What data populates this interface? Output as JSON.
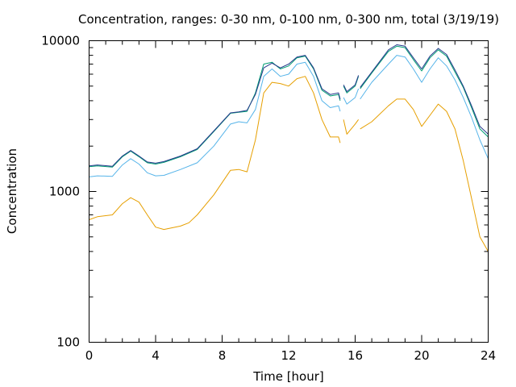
{
  "chart_data": {
    "type": "line",
    "title": "Concentration, ranges: 0-30 nm, 0-100 nm, 0-300 nm, total (3/19/19)",
    "xlabel": "Time [hour]",
    "ylabel": "Concentration",
    "xlim": [
      0,
      24
    ],
    "ylim": [
      100,
      10000
    ],
    "yscale": "log",
    "grid": false,
    "legend": "none",
    "x_ticks": [
      0,
      4,
      8,
      12,
      16,
      20,
      24
    ],
    "x_tick_labels": [
      "0",
      "4",
      "8",
      "12",
      "16",
      "20",
      "24"
    ],
    "y_ticks": [
      100,
      1000,
      10000
    ],
    "y_tick_labels": [
      "100",
      "1000",
      "10000"
    ],
    "series": [
      {
        "color": "#e69f00",
        "segments": [
          [
            [
              0,
              650
            ],
            [
              0.5,
              680
            ],
            [
              1.4,
              700
            ],
            [
              2,
              830
            ],
            [
              2.5,
              910
            ],
            [
              3,
              850
            ],
            [
              3.5,
              700
            ],
            [
              4,
              580
            ],
            [
              4.5,
              560
            ],
            [
              5.5,
              590
            ],
            [
              6,
              620
            ],
            [
              6.5,
              700
            ],
            [
              7.5,
              950
            ],
            [
              8.5,
              1380
            ],
            [
              9,
              1400
            ],
            [
              9.5,
              1350
            ],
            [
              10,
              2200
            ],
            [
              10.5,
              4500
            ],
            [
              11,
              5300
            ],
            [
              11.5,
              5200
            ],
            [
              12,
              5000
            ],
            [
              12.5,
              5600
            ],
            [
              13,
              5800
            ],
            [
              13.5,
              4500
            ],
            [
              14,
              3000
            ],
            [
              14.5,
              2300
            ],
            [
              15,
              2300
            ],
            [
              15.1,
              2100
            ]
          ],
          [
            [
              15.3,
              3000
            ],
            [
              15.5,
              2400
            ],
            [
              16,
              2800
            ],
            [
              16.2,
              3000
            ]
          ],
          [
            [
              16.3,
              2600
            ],
            [
              17,
              2900
            ],
            [
              18,
              3700
            ],
            [
              18.5,
              4100
            ],
            [
              19,
              4100
            ],
            [
              19.5,
              3500
            ],
            [
              20,
              2700
            ],
            [
              20.5,
              3200
            ],
            [
              21,
              3800
            ],
            [
              21.5,
              3400
            ],
            [
              22,
              2600
            ],
            [
              22.5,
              1600
            ],
            [
              23,
              900
            ],
            [
              23.5,
              500
            ],
            [
              24,
              400
            ]
          ]
        ]
      },
      {
        "color": "#56b4e9",
        "segments": [
          [
            [
              0,
              1250
            ],
            [
              0.5,
              1270
            ],
            [
              1.4,
              1260
            ],
            [
              2,
              1500
            ],
            [
              2.5,
              1650
            ],
            [
              3,
              1520
            ],
            [
              3.5,
              1330
            ],
            [
              4,
              1270
            ],
            [
              4.5,
              1280
            ],
            [
              5.5,
              1400
            ],
            [
              6.5,
              1550
            ],
            [
              7.5,
              2000
            ],
            [
              8.5,
              2800
            ],
            [
              9,
              2900
            ],
            [
              9.5,
              2850
            ],
            [
              10,
              3500
            ],
            [
              10.5,
              5800
            ],
            [
              11,
              6500
            ],
            [
              11.5,
              5800
            ],
            [
              12,
              6000
            ],
            [
              12.5,
              7000
            ],
            [
              13,
              7200
            ],
            [
              13.5,
              5800
            ],
            [
              14,
              4000
            ],
            [
              14.5,
              3600
            ],
            [
              15,
              3700
            ],
            [
              15.1,
              3400
            ]
          ],
          [
            [
              15.3,
              4200
            ],
            [
              15.5,
              3800
            ],
            [
              16,
              4200
            ],
            [
              16.2,
              4800
            ]
          ],
          [
            [
              16.3,
              4100
            ],
            [
              17,
              5300
            ],
            [
              18,
              7000
            ],
            [
              18.5,
              8000
            ],
            [
              19,
              7800
            ],
            [
              19.5,
              6500
            ],
            [
              20,
              5300
            ],
            [
              20.5,
              6500
            ],
            [
              21,
              7700
            ],
            [
              21.5,
              6800
            ],
            [
              22,
              5500
            ],
            [
              22.5,
              4200
            ],
            [
              23,
              3100
            ],
            [
              23.5,
              2200
            ],
            [
              24,
              1650
            ]
          ]
        ]
      },
      {
        "color": "#009e73",
        "segments": [
          [
            [
              0,
              1460
            ],
            [
              0.5,
              1480
            ],
            [
              1.4,
              1450
            ],
            [
              2,
              1700
            ],
            [
              2.5,
              1850
            ],
            [
              3,
              1700
            ],
            [
              3.5,
              1550
            ],
            [
              4,
              1520
            ],
            [
              4.5,
              1560
            ],
            [
              5.5,
              1700
            ],
            [
              6.5,
              1900
            ],
            [
              7.5,
              2500
            ],
            [
              8.5,
              3300
            ],
            [
              9,
              3350
            ],
            [
              9.5,
              3400
            ],
            [
              10,
              4500
            ],
            [
              10.5,
              7000
            ],
            [
              11,
              7200
            ],
            [
              11.5,
              6500
            ],
            [
              12,
              6800
            ],
            [
              12.5,
              7700
            ],
            [
              13,
              7900
            ],
            [
              13.5,
              6500
            ],
            [
              14,
              4700
            ],
            [
              14.5,
              4300
            ],
            [
              15,
              4400
            ],
            [
              15.1,
              4000
            ]
          ],
          [
            [
              15.3,
              5000
            ],
            [
              15.5,
              4500
            ],
            [
              16,
              5000
            ],
            [
              16.2,
              5800
            ]
          ],
          [
            [
              16.3,
              4800
            ],
            [
              17,
              6100
            ],
            [
              18,
              8500
            ],
            [
              18.5,
              9200
            ],
            [
              19,
              9000
            ],
            [
              19.5,
              7500
            ],
            [
              20,
              6300
            ],
            [
              20.5,
              7700
            ],
            [
              21,
              8700
            ],
            [
              21.5,
              7900
            ],
            [
              22,
              6200
            ],
            [
              22.5,
              4900
            ],
            [
              23,
              3600
            ],
            [
              23.5,
              2600
            ],
            [
              24,
              2300
            ]
          ]
        ]
      },
      {
        "color": "#263a8c",
        "segments": [
          [
            [
              0,
              1480
            ],
            [
              0.5,
              1500
            ],
            [
              1.4,
              1470
            ],
            [
              2,
              1720
            ],
            [
              2.5,
              1870
            ],
            [
              3,
              1720
            ],
            [
              3.5,
              1570
            ],
            [
              4,
              1540
            ],
            [
              4.5,
              1580
            ],
            [
              5.5,
              1720
            ],
            [
              6.5,
              1920
            ],
            [
              7.5,
              2520
            ],
            [
              8.5,
              3320
            ],
            [
              9,
              3370
            ],
            [
              9.5,
              3450
            ],
            [
              10,
              4400
            ],
            [
              10.5,
              6600
            ],
            [
              11,
              7100
            ],
            [
              11.5,
              6600
            ],
            [
              12,
              7000
            ],
            [
              12.5,
              7800
            ],
            [
              13,
              8000
            ],
            [
              13.5,
              6600
            ],
            [
              14,
              4800
            ],
            [
              14.5,
              4400
            ],
            [
              15,
              4500
            ],
            [
              15.1,
              4100
            ]
          ],
          [
            [
              15.3,
              5100
            ],
            [
              15.5,
              4600
            ],
            [
              16,
              5100
            ],
            [
              16.2,
              5900
            ]
          ],
          [
            [
              16.3,
              4900
            ],
            [
              17,
              6200
            ],
            [
              18,
              8700
            ],
            [
              18.5,
              9400
            ],
            [
              19,
              9200
            ],
            [
              19.5,
              7700
            ],
            [
              20,
              6500
            ],
            [
              20.5,
              7900
            ],
            [
              21,
              8900
            ],
            [
              21.5,
              8100
            ],
            [
              22,
              6400
            ],
            [
              22.5,
              5000
            ],
            [
              23,
              3700
            ],
            [
              23.5,
              2700
            ],
            [
              24,
              2400
            ]
          ]
        ]
      }
    ]
  }
}
